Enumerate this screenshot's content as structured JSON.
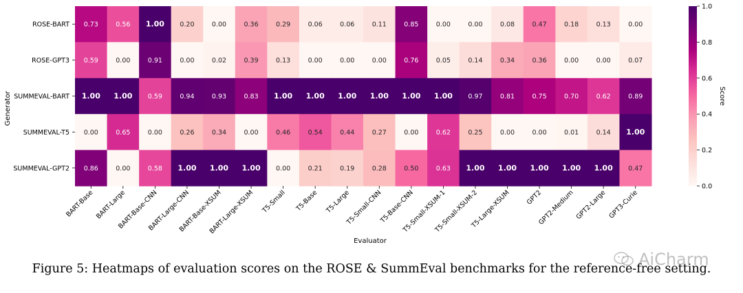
{
  "chart_data": {
    "type": "heatmap",
    "xlabel": "Evaluator",
    "ylabel": "Generator",
    "colorbar_label": "Score",
    "colorbar_ticks": [
      0.0,
      0.2,
      0.4,
      0.6,
      0.8,
      1.0
    ],
    "colorbar_tick_labels": [
      "0.0",
      "0.2",
      "0.4",
      "0.6",
      "0.8",
      "1.0"
    ],
    "vmin": 0.0,
    "vmax": 1.0,
    "colormap": [
      "#fff7f3",
      "#fde0dd",
      "#fcc5c0",
      "#fa9fb5",
      "#f768a1",
      "#dd3497",
      "#ae017e",
      "#7a0177",
      "#49006a"
    ],
    "rows": [
      "ROSE-BART",
      "ROSE-GPT3",
      "SUMMEVAL-BART",
      "SUMMEVAL-T5",
      "SUMMEVAL-GPT2"
    ],
    "columns": [
      "BART-Base",
      "BART-Large",
      "BART-Base-CNN",
      "BART-Large-CNN",
      "BART-Base-XSUM",
      "BART-Large-XSUM",
      "T5-Small",
      "T5-Base",
      "T5-Large",
      "T5-Small-CNN",
      "T5-Base-CNN",
      "T5-Small-XSUM-1",
      "T5-Small-XSUM-2",
      "T5-Large-XSUM",
      "GPT2",
      "GPT2-Medium",
      "GPT2-Large",
      "GPT3-Curie"
    ],
    "values": [
      [
        0.73,
        0.56,
        1.0,
        0.2,
        0.0,
        0.36,
        0.29,
        0.06,
        0.06,
        0.11,
        0.85,
        0.0,
        0.0,
        0.08,
        0.47,
        0.18,
        0.13,
        0.0
      ],
      [
        0.59,
        0.0,
        0.91,
        0.0,
        0.02,
        0.39,
        0.13,
        0.0,
        0.0,
        0.0,
        0.76,
        0.05,
        0.14,
        0.34,
        0.36,
        0.0,
        0.0,
        0.07
      ],
      [
        1.0,
        1.0,
        0.59,
        0.94,
        0.93,
        0.83,
        1.0,
        1.0,
        1.0,
        1.0,
        1.0,
        1.0,
        0.97,
        0.81,
        0.75,
        0.7,
        0.62,
        0.89
      ],
      [
        0.0,
        0.65,
        0.0,
        0.26,
        0.34,
        0.0,
        0.46,
        0.54,
        0.44,
        0.27,
        0.0,
        0.62,
        0.25,
        0.0,
        0.0,
        0.01,
        0.14,
        1.0
      ],
      [
        0.86,
        0.0,
        0.58,
        1.0,
        1.0,
        1.0,
        0.0,
        0.21,
        0.19,
        0.28,
        0.5,
        0.63,
        1.0,
        1.0,
        1.0,
        1.0,
        1.0,
        0.47
      ]
    ]
  },
  "caption": "Figure 5: Heatmaps of evaluation scores on the ROSE & SummEval benchmarks for the reference-free setting.",
  "watermark": "AiCharm"
}
